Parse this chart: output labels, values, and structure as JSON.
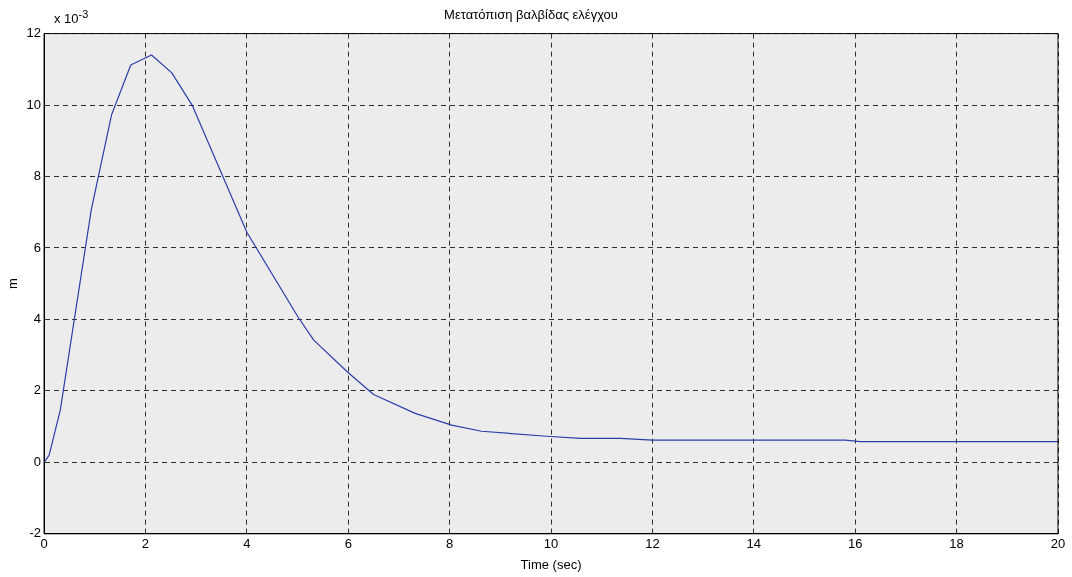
{
  "chart_data": {
    "type": "line",
    "title": "Μετατόπιση βαλβίδας ελέγχου",
    "xlabel": "Time (sec)",
    "ylabel": "m",
    "annotations": [
      "x 10$^{-3}$"
    ],
    "xlim": [
      0,
      20
    ],
    "xticks": [
      0,
      2,
      4,
      6,
      8,
      10,
      12,
      14,
      16,
      18,
      20
    ],
    "ylim": [
      -2,
      12
    ],
    "yticks": [
      -2,
      0,
      2,
      4,
      6,
      8,
      10,
      12
    ],
    "grid": true,
    "legend": false,
    "marker": "none",
    "line_style": "solid",
    "series": [
      {
        "color": "#2b3fa8",
        "x": [
          0,
          0.1,
          0.32,
          0.93,
          1.33,
          1.71,
          2.12,
          2.52,
          2.92,
          4.0,
          5.0,
          5.32,
          5.99,
          6.5,
          7.32,
          8.04,
          8.63,
          9.92,
          10.58,
          11.37,
          12.0,
          15.8,
          16.1,
          20
        ],
        "values": [
          0,
          0.2,
          1.46,
          7.06,
          9.72,
          11.12,
          11.4,
          10.9,
          10.0,
          6.44,
          4.09,
          3.42,
          2.52,
          1.9,
          1.37,
          1.04,
          0.87,
          0.73,
          0.67,
          0.67,
          0.62,
          0.62,
          0.58,
          0.58
        ]
      }
    ]
  }
}
